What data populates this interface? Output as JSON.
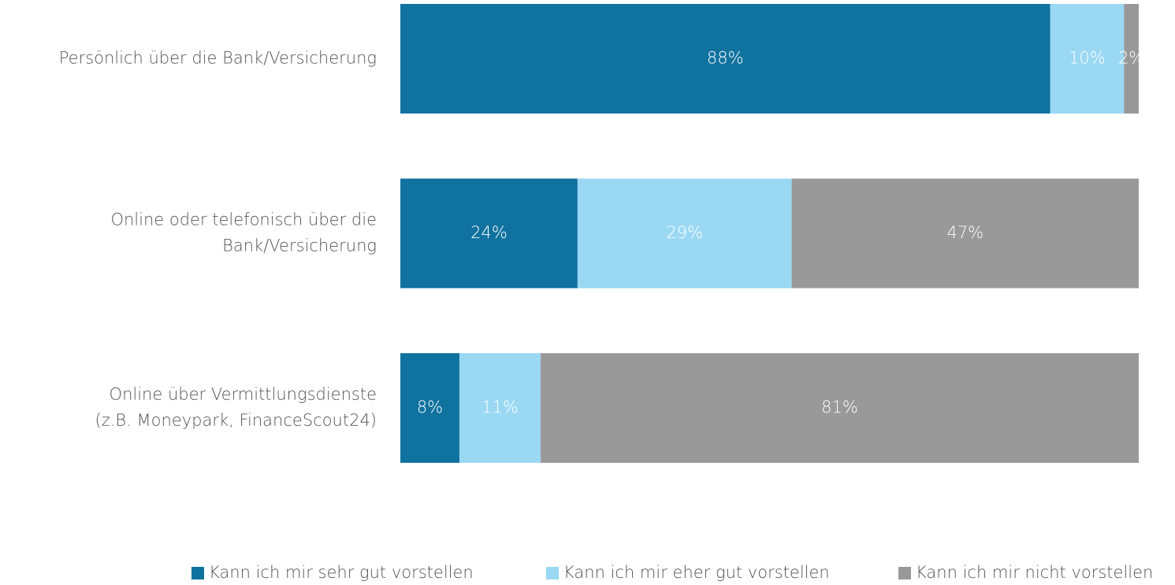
{
  "chart_data": {
    "type": "stacked_barh",
    "categories": [
      [
        "Persönlich über die Bank/Versicherung"
      ],
      [
        "Online oder telefonisch über die",
        "Bank/Versicherung"
      ],
      [
        "Online über Vermittlungsdienste",
        "(z.B. Moneypark, FinanceScout24)"
      ]
    ],
    "series": [
      {
        "name": "Kann ich mir sehr gut vorstellen",
        "color": "#10729f",
        "values": [
          88,
          24,
          8
        ],
        "value_labels": [
          "88%",
          "24%",
          "8%"
        ]
      },
      {
        "name": "Kann ich mir eher gut vorstellen",
        "color": "#9ad8f3",
        "values": [
          10,
          29,
          11
        ],
        "value_labels": [
          "10%",
          "29%",
          "11%"
        ]
      },
      {
        "name": "Kann ich mir nicht vorstellen",
        "color": "#999999",
        "values": [
          2,
          47,
          81
        ],
        "value_labels": [
          "2%",
          "47%",
          "81%"
        ]
      }
    ],
    "xlim": [
      0,
      100
    ],
    "legend": "bottom"
  }
}
